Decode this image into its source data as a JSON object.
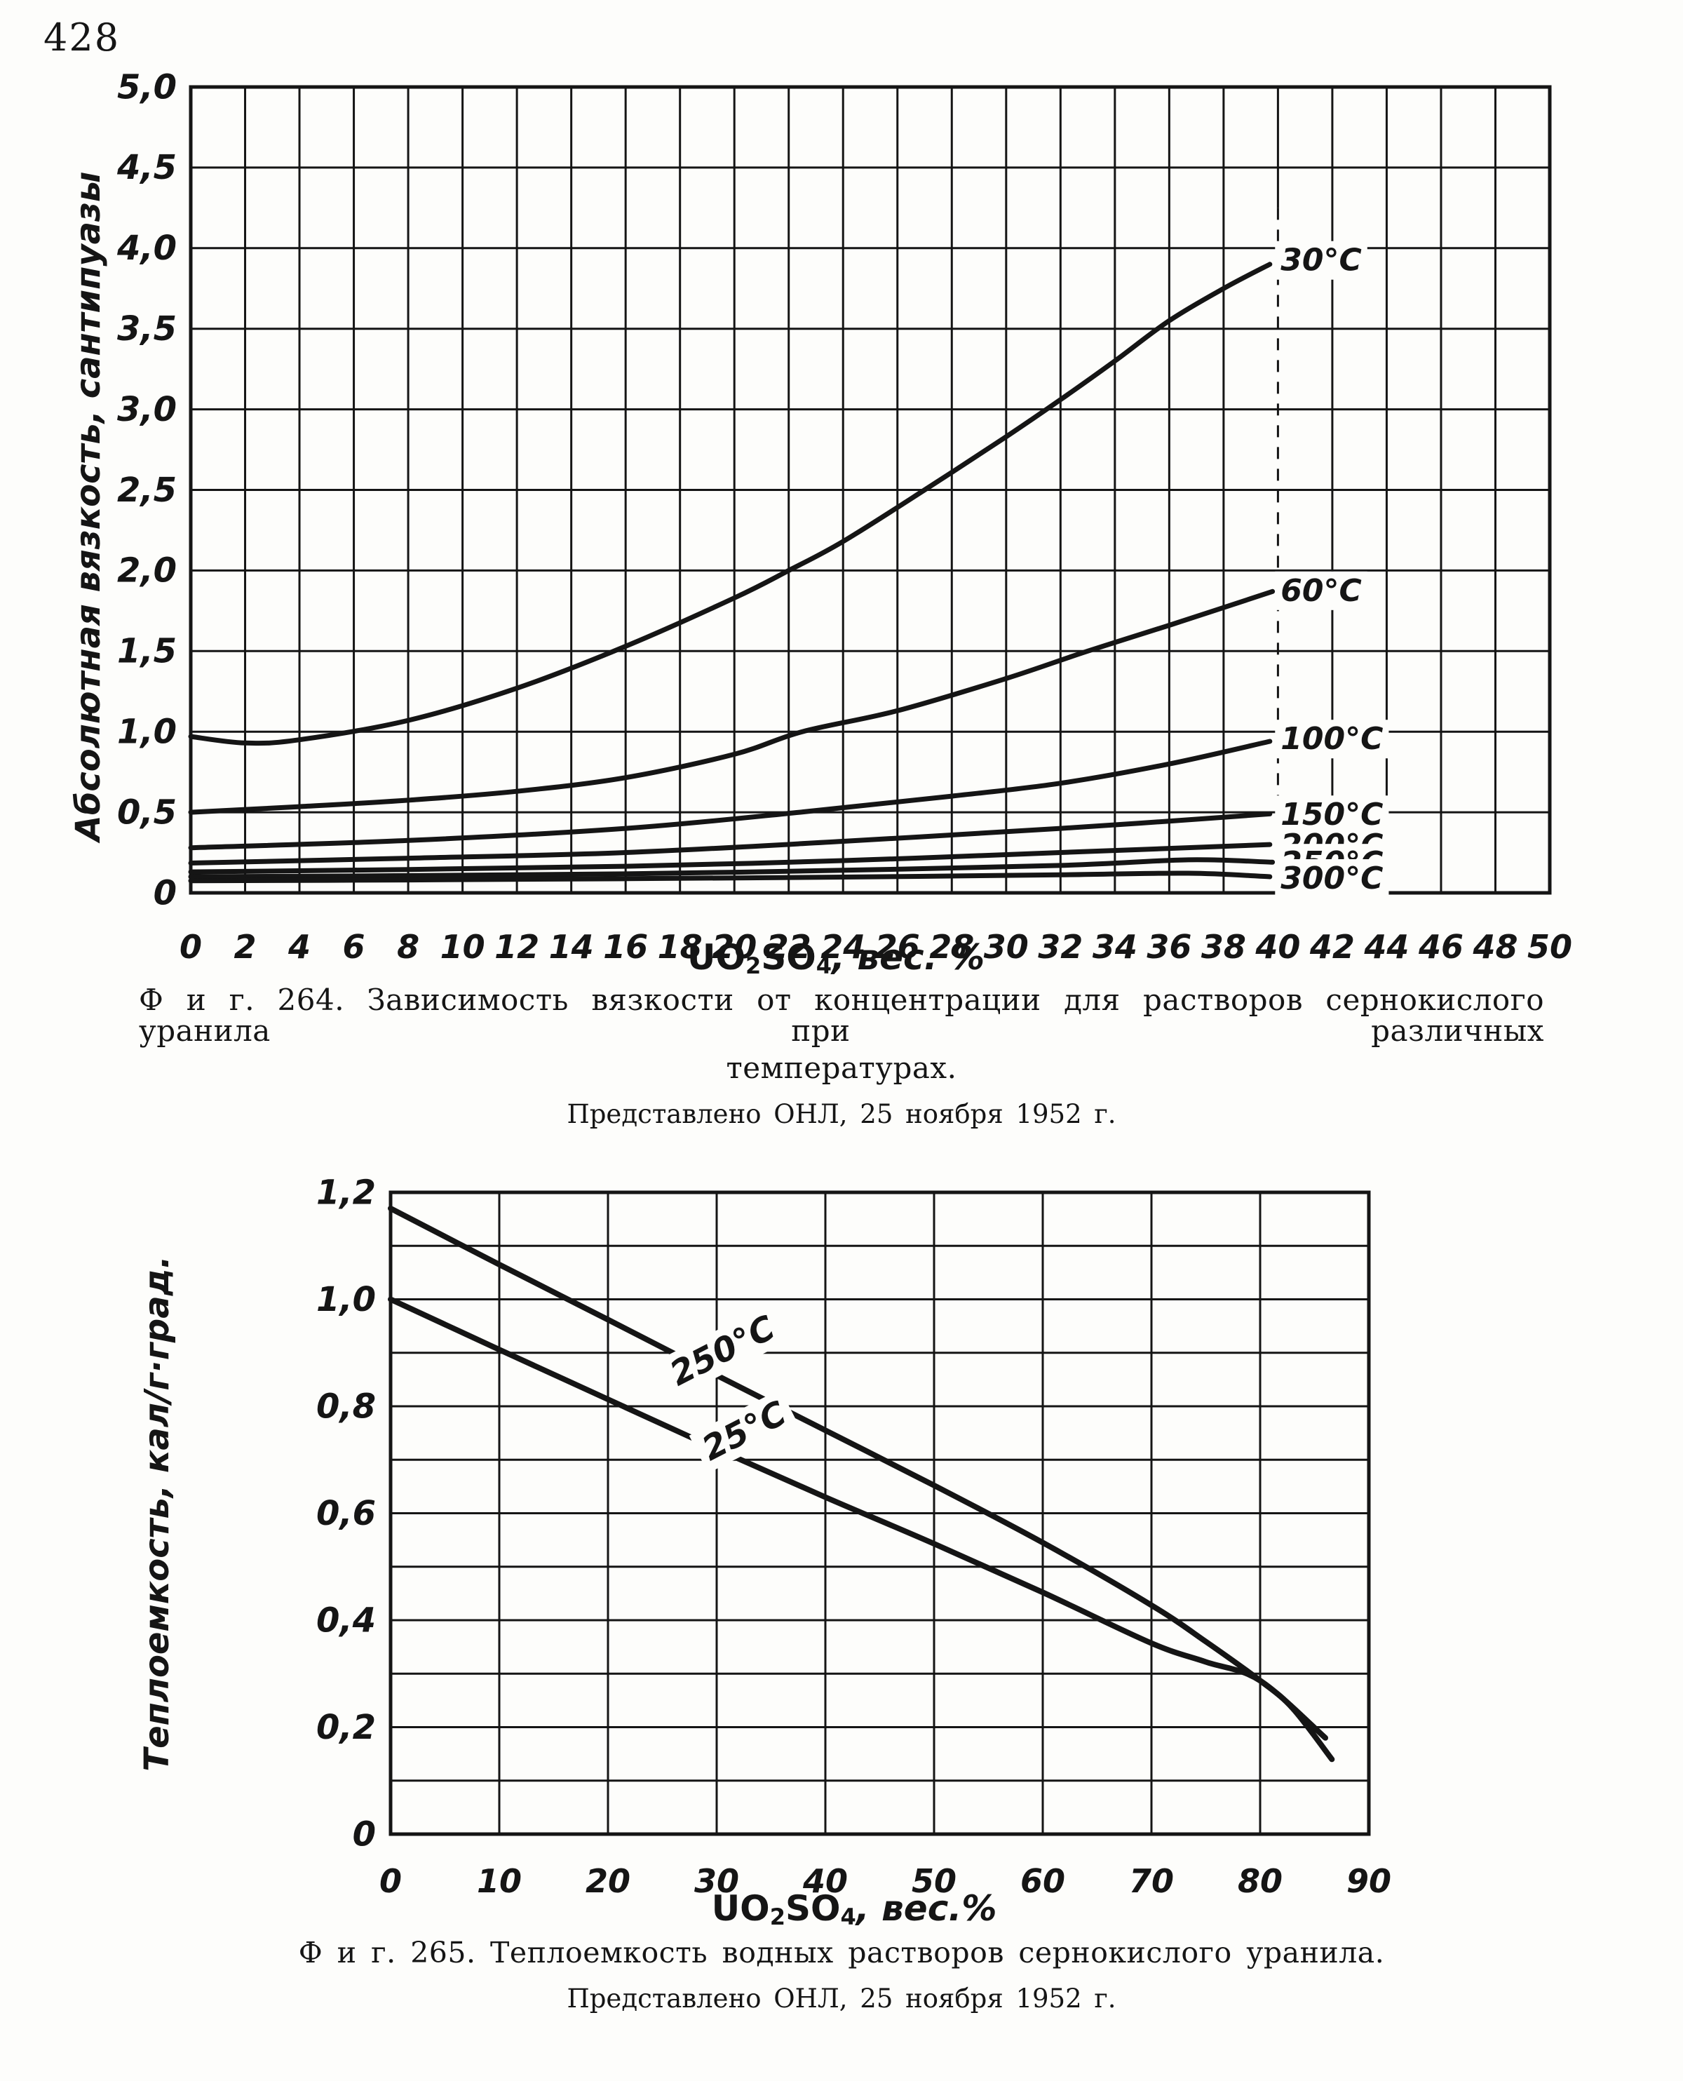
{
  "page": {
    "number": "428"
  },
  "figure264": {
    "caption_line1": "Ф и г. 264. Зависимость вязкости от концентрации для растворов сернокислого уранила при различных",
    "caption_line2": "температурах.",
    "caption_sub": "Представлено ОНЛ, 25 ноября 1952 г."
  },
  "figure265": {
    "caption_line1": "Ф и г. 265. Теплоемкость водных растворов  сернокислого уранила.",
    "caption_sub": "Представлено ОНЛ, 25 ноября 1952 г."
  },
  "chart_data": [
    {
      "id": "fig264",
      "type": "line",
      "title": "Фиг. 264. Зависимость вязкости от концентрации для растворов сернокислого уранила при различных температурах.",
      "ylabel": "Абсолютная вязкость, сантипуазы",
      "xlabel": {
        "base1": "UO",
        "sub1": "2",
        "base2": "SO",
        "sub2": "4",
        "suffix": ", вес. %"
      },
      "xlim": [
        0,
        50
      ],
      "ylim": [
        0,
        5
      ],
      "grid": {
        "x_step": 2,
        "y_step": 0.5,
        "on": true
      },
      "dashed_gridline_x": 40,
      "x_tick_labels": [
        "0",
        "2",
        "4",
        "6",
        "8",
        "10",
        "12",
        "14",
        "16",
        "18",
        "20",
        "22",
        "24",
        "26",
        "28",
        "30",
        "32",
        "34",
        "36",
        "38",
        "40",
        "42",
        "44",
        "46",
        "48",
        "50"
      ],
      "y_tick_labels": [
        "0",
        "0,5",
        "1,0",
        "1,5",
        "2,0",
        "2,5",
        "3,0",
        "3,5",
        "4,0",
        "4,5",
        "5,0"
      ],
      "legend_position": "labels-at-line-ends",
      "series": [
        {
          "name": "30°C",
          "label_y": 3.93,
          "points": [
            [
              0,
              0.97
            ],
            [
              2,
              0.93
            ],
            [
              4,
              0.95
            ],
            [
              8,
              1.07
            ],
            [
              12,
              1.27
            ],
            [
              16,
              1.53
            ],
            [
              20,
              1.83
            ],
            [
              22,
              2.0
            ],
            [
              24,
              2.18
            ],
            [
              27,
              2.5
            ],
            [
              30,
              2.83
            ],
            [
              32,
              3.06
            ],
            [
              34,
              3.3
            ],
            [
              36,
              3.55
            ],
            [
              38,
              3.75
            ],
            [
              39.7,
              3.9
            ]
          ]
        },
        {
          "name": "60°C",
          "label_y": 1.88,
          "points": [
            [
              0,
              0.5
            ],
            [
              4,
              0.535
            ],
            [
              8,
              0.575
            ],
            [
              12,
              0.63
            ],
            [
              16,
              0.715
            ],
            [
              20,
              0.86
            ],
            [
              22.5,
              1.0
            ],
            [
              26,
              1.13
            ],
            [
              30,
              1.33
            ],
            [
              33,
              1.5
            ],
            [
              36,
              1.66
            ],
            [
              39.8,
              1.87
            ]
          ]
        },
        {
          "name": "100°C",
          "label_y": 0.96,
          "points": [
            [
              0,
              0.28
            ],
            [
              8,
              0.325
            ],
            [
              16,
              0.4
            ],
            [
              22.4,
              0.5
            ],
            [
              28,
              0.6
            ],
            [
              32,
              0.68
            ],
            [
              36,
              0.8
            ],
            [
              39.7,
              0.94
            ]
          ]
        },
        {
          "name": "150°C",
          "label_y": 0.49,
          "points": [
            [
              0,
              0.185
            ],
            [
              8,
              0.215
            ],
            [
              16,
              0.25
            ],
            [
              24,
              0.32
            ],
            [
              32,
              0.4
            ],
            [
              36,
              0.445
            ],
            [
              39.7,
              0.49
            ]
          ]
        },
        {
          "name": "200°C",
          "label_y": 0.3,
          "points": [
            [
              0,
              0.13
            ],
            [
              8,
              0.145
            ],
            [
              16,
              0.165
            ],
            [
              24,
              0.2
            ],
            [
              32,
              0.25
            ],
            [
              39.7,
              0.3
            ]
          ]
        },
        {
          "name": "250°C",
          "label_y": 0.19,
          "points": [
            [
              0,
              0.1
            ],
            [
              8,
              0.107
            ],
            [
              16,
              0.118
            ],
            [
              24,
              0.14
            ],
            [
              32,
              0.17
            ],
            [
              36.7,
              0.205
            ],
            [
              39.8,
              0.19
            ]
          ]
        },
        {
          "name": "300°C",
          "label_y": 0.095,
          "points": [
            [
              0,
              0.075
            ],
            [
              8,
              0.08
            ],
            [
              16,
              0.088
            ],
            [
              24,
              0.098
            ],
            [
              32,
              0.112
            ],
            [
              36.7,
              0.122
            ],
            [
              39.7,
              0.1
            ]
          ]
        }
      ]
    },
    {
      "id": "fig265",
      "type": "line",
      "title": "Фиг. 265. Теплоемкость водных растворов сернокислого уранила.",
      "ylabel": "Теплоемкость, кал/г·град.",
      "xlabel": {
        "base1": "UO",
        "sub1": "2",
        "base2": "SO",
        "sub2": "4",
        "suffix": ", вес.%"
      },
      "xlim": [
        0,
        90
      ],
      "ylim": [
        0,
        1.2
      ],
      "grid": {
        "x_step": 10,
        "y_step": 0.1,
        "on": true
      },
      "x_tick_labels": [
        "0",
        "10",
        "20",
        "30",
        "40",
        "50",
        "60",
        "70",
        "80",
        "90"
      ],
      "y_tick_labels": [
        "0",
        "0,2",
        "0,4",
        "0,6",
        "0,8",
        "1,0",
        "1,2"
      ],
      "legend_position": "labels-on-lines",
      "series": [
        {
          "name": "250°C",
          "label_at": [
            30.5,
            0.905
          ],
          "label_rotation": -27,
          "points": [
            [
              0,
              1.17
            ],
            [
              10,
              1.065
            ],
            [
              20,
              0.962
            ],
            [
              30,
              0.858
            ],
            [
              40,
              0.755
            ],
            [
              50,
              0.652
            ],
            [
              60,
              0.545
            ],
            [
              70,
              0.428
            ],
            [
              75,
              0.36
            ],
            [
              80,
              0.287
            ],
            [
              83,
              0.235
            ],
            [
              86.6,
              0.14
            ]
          ]
        },
        {
          "name": "25°C",
          "label_at": [
            32.5,
            0.755
          ],
          "label_rotation": -27,
          "points": [
            [
              0,
              1.0
            ],
            [
              10,
              0.906
            ],
            [
              20,
              0.813
            ],
            [
              30,
              0.72
            ],
            [
              40,
              0.63
            ],
            [
              50,
              0.543
            ],
            [
              60,
              0.452
            ],
            [
              70,
              0.357
            ],
            [
              75,
              0.322
            ],
            [
              80,
              0.287
            ],
            [
              86,
              0.18
            ]
          ]
        }
      ]
    }
  ]
}
